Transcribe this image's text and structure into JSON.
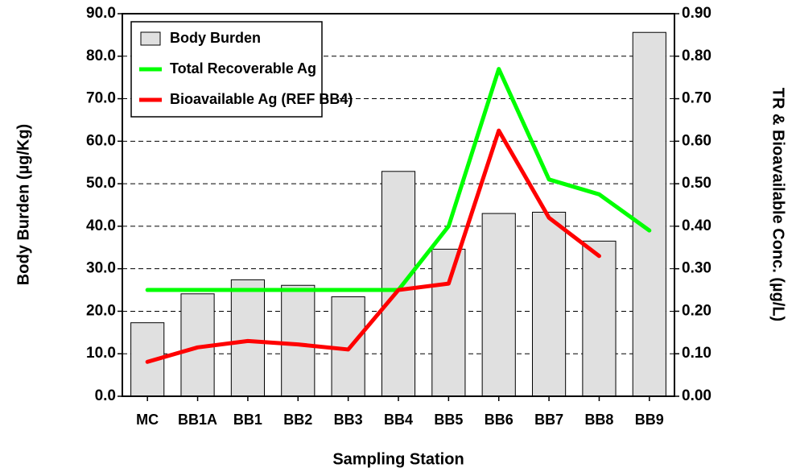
{
  "chart_data": {
    "type": "bar",
    "x_label": "Sampling Station",
    "y_label": "Body Burden (µg/Kg)",
    "y2_label": "TR & Bioavailable Conc. (µg/L)",
    "categories": [
      "MC",
      "BB1A",
      "BB1",
      "BB2",
      "BB3",
      "BB4",
      "BB5",
      "BB6",
      "BB7",
      "BB8",
      "BB9"
    ],
    "series": [
      {
        "name": "Body Burden",
        "type": "bar",
        "color": "#e0e0e0",
        "values": [
          17.3,
          24.1,
          27.4,
          26.1,
          23.4,
          52.9,
          34.6,
          43.0,
          43.3,
          36.5,
          85.6
        ]
      },
      {
        "name": "Total Recoverable Ag",
        "type": "line",
        "axis": "y2",
        "color": "#00ff00",
        "values": [
          0.25,
          0.25,
          0.25,
          0.25,
          0.25,
          0.25,
          0.4,
          0.77,
          0.51,
          0.475,
          0.39
        ]
      },
      {
        "name": "Bioavailable Ag (REF BB4)",
        "type": "line",
        "axis": "y2",
        "color": "#ff0000",
        "values": [
          0.081,
          0.115,
          0.13,
          0.122,
          0.11,
          0.25,
          0.265,
          0.625,
          0.42,
          0.33,
          null
        ]
      }
    ],
    "ylim": [
      0,
      90
    ],
    "yticks": [
      {
        "value": 0,
        "label": "0.0"
      },
      {
        "value": 10,
        "label": "10.0"
      },
      {
        "value": 20,
        "label": "20.0"
      },
      {
        "value": 30,
        "label": "30.0"
      },
      {
        "value": 40,
        "label": "40.0"
      },
      {
        "value": 50,
        "label": "50.0"
      },
      {
        "value": 60,
        "label": "60.0"
      },
      {
        "value": 70,
        "label": "70.0"
      },
      {
        "value": 80,
        "label": "80.0"
      },
      {
        "value": 90,
        "label": "90.0"
      }
    ],
    "y2lim": [
      0,
      0.9
    ],
    "y2ticks": [
      {
        "value": 0,
        "label": "0.00"
      },
      {
        "value": 0.1,
        "label": "0.10"
      },
      {
        "value": 0.2,
        "label": "0.20"
      },
      {
        "value": 0.3,
        "label": "0.30"
      },
      {
        "value": 0.4,
        "label": "0.40"
      },
      {
        "value": 0.5,
        "label": "0.50"
      },
      {
        "value": 0.6,
        "label": "0.60"
      },
      {
        "value": 0.7,
        "label": "0.70"
      },
      {
        "value": 0.8,
        "label": "0.80"
      },
      {
        "value": 0.9,
        "label": "0.90"
      }
    ],
    "grid": true,
    "legend": "top-left"
  }
}
